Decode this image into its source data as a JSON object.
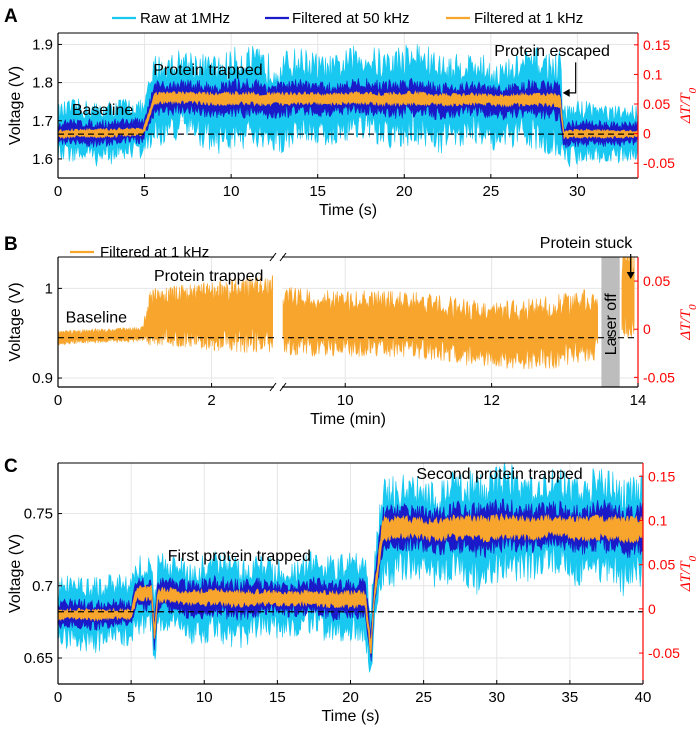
{
  "chart_data": [
    {
      "panel": "A",
      "type": "line",
      "xlabel": "Time (s)",
      "ylabel": "Voltage (V)",
      "y2label": "ΔT/T0",
      "xlim": [
        0,
        33.5
      ],
      "ylim": [
        1.55,
        1.93
      ],
      "y2lim": [
        -0.075,
        0.17
      ],
      "xticks": [
        0,
        5,
        10,
        15,
        20,
        25,
        30
      ],
      "yticks": [
        1.6,
        1.7,
        1.8,
        1.9
      ],
      "y2ticks": [
        -0.05,
        0,
        0.05,
        0.1,
        0.15
      ],
      "baseline": 1.665,
      "legend": [
        "Raw at 1MHz",
        "Filtered at 50 kHz",
        "Filtered at 1 kHz"
      ],
      "series": [
        {
          "name": "Raw at 1MHz",
          "color": "#18c8f0",
          "x": [
            0,
            4.9,
            5.0,
            5.6,
            29.0,
            29.2,
            33.5
          ],
          "y": [
            1.665,
            1.67,
            1.68,
            1.76,
            1.755,
            1.665,
            1.665
          ],
          "spread": [
            0.08,
            0.08,
            0.08,
            0.13,
            0.13,
            0.08,
            0.08
          ]
        },
        {
          "name": "Filtered at 50 kHz",
          "color": "#1a1ac8",
          "x": [
            0,
            4.9,
            5.0,
            5.6,
            29.0,
            29.2,
            33.5
          ],
          "y": [
            1.665,
            1.67,
            1.68,
            1.76,
            1.755,
            1.665,
            1.665
          ],
          "spread": [
            0.035,
            0.035,
            0.035,
            0.05,
            0.05,
            0.035,
            0.035
          ]
        },
        {
          "name": "Filtered at 1 kHz",
          "color": "#f7a52c",
          "x": [
            0,
            4.9,
            5.0,
            5.6,
            29.0,
            29.2,
            33.5
          ],
          "y": [
            1.665,
            1.67,
            1.68,
            1.76,
            1.755,
            1.665,
            1.665
          ],
          "spread": [
            0.012,
            0.012,
            0.012,
            0.018,
            0.018,
            0.012,
            0.012
          ]
        }
      ],
      "annotations": [
        {
          "text": "Baseline",
          "x": 0.8,
          "y": 1.715
        },
        {
          "text": "Protein trapped",
          "x": 5.5,
          "y": 1.82
        },
        {
          "text": "Protein escaped",
          "x": 25.2,
          "y": 1.87
        }
      ]
    },
    {
      "panel": "B",
      "type": "line",
      "xlabel": "Time (min)",
      "ylabel": "Voltage (V)",
      "y2label": "ΔT/T0",
      "xlim": [
        0,
        14
      ],
      "ylim": [
        0.89,
        1.035
      ],
      "y2lim": [
        -0.06,
        0.075
      ],
      "xticks": [
        0,
        2,
        10,
        12,
        14
      ],
      "yticks": [
        0.9,
        1
      ],
      "y2ticks": [
        -0.05,
        0,
        0.05
      ],
      "baseline": 0.945,
      "legend": [
        "Filtered at 1 kHz"
      ],
      "axis_break": "between 2 and 10 min",
      "shaded_region": {
        "label": "Laser off",
        "x": [
          13.5,
          13.75
        ]
      },
      "series": [
        {
          "name": "Filtered at 1 kHz",
          "color": "#f7a52c",
          "x": [
            0,
            1.1,
            1.2,
            2.5,
            9.0,
            10.0,
            11.0,
            12.0,
            12.8,
            13.3,
            13.45,
            13.8,
            13.95
          ],
          "y": [
            0.945,
            0.948,
            0.965,
            0.972,
            0.97,
            0.962,
            0.958,
            0.952,
            0.955,
            0.96,
            0.96,
            0.99,
            0.99
          ],
          "spread": [
            0.008,
            0.008,
            0.03,
            0.04,
            0.04,
            0.035,
            0.035,
            0.035,
            0.04,
            0.04,
            0.04,
            0.05,
            0.05
          ]
        }
      ],
      "annotations": [
        {
          "text": "Baseline",
          "x": 0.1,
          "y": 0.962
        },
        {
          "text": "Protein trapped",
          "x": 1.25,
          "y": 1.008
        },
        {
          "text": "Protein stuck",
          "x": 13.0,
          "y": 1.05
        },
        {
          "text": "Laser off",
          "x": 13.62,
          "y": 0.96
        }
      ]
    },
    {
      "panel": "C",
      "type": "line",
      "xlabel": "Time (s)",
      "ylabel": "Voltage (V)",
      "y2label": "ΔT/T0",
      "xlim": [
        0,
        40
      ],
      "ylim": [
        0.632,
        0.785
      ],
      "y2lim": [
        -0.085,
        0.165
      ],
      "xticks": [
        0,
        5,
        10,
        15,
        20,
        25,
        30,
        35,
        40
      ],
      "yticks": [
        0.65,
        0.7,
        0.75
      ],
      "y2ticks": [
        -0.05,
        0,
        0.05,
        0.1,
        0.15
      ],
      "baseline": 0.682,
      "series": [
        {
          "name": "Raw at 1MHz",
          "color": "#18c8f0",
          "x": [
            0,
            5.0,
            5.4,
            6.4,
            6.6,
            6.8,
            21.0,
            21.4,
            21.6,
            22.2,
            40
          ],
          "y": [
            0.68,
            0.68,
            0.695,
            0.695,
            0.665,
            0.693,
            0.69,
            0.655,
            0.69,
            0.74,
            0.74
          ],
          "spread": [
            0.025,
            0.025,
            0.03,
            0.03,
            0.03,
            0.03,
            0.03,
            0.03,
            0.03,
            0.04,
            0.04
          ]
        },
        {
          "name": "Filtered at 50 kHz",
          "color": "#1a1ac8",
          "x": [
            0,
            5.0,
            5.4,
            6.4,
            6.6,
            6.8,
            21.0,
            21.4,
            21.6,
            22.2,
            40
          ],
          "y": [
            0.68,
            0.68,
            0.695,
            0.695,
            0.665,
            0.693,
            0.69,
            0.655,
            0.69,
            0.74,
            0.74
          ],
          "spread": [
            0.01,
            0.01,
            0.014,
            0.014,
            0.014,
            0.014,
            0.014,
            0.014,
            0.014,
            0.018,
            0.018
          ]
        },
        {
          "name": "Filtered at 1 kHz",
          "color": "#f7a52c",
          "x": [
            0,
            5.0,
            5.4,
            6.4,
            6.6,
            6.8,
            21.0,
            21.4,
            21.6,
            22.2,
            40
          ],
          "y": [
            0.68,
            0.68,
            0.695,
            0.695,
            0.665,
            0.693,
            0.69,
            0.655,
            0.69,
            0.74,
            0.74
          ],
          "spread": [
            0.004,
            0.004,
            0.006,
            0.006,
            0.006,
            0.006,
            0.006,
            0.006,
            0.006,
            0.009,
            0.009
          ]
        }
      ],
      "annotations": [
        {
          "text": "First protein trapped",
          "x": 7.5,
          "y": 0.717
        },
        {
          "text": "Second protein trapped",
          "x": 24.5,
          "y": 0.774
        }
      ]
    }
  ]
}
